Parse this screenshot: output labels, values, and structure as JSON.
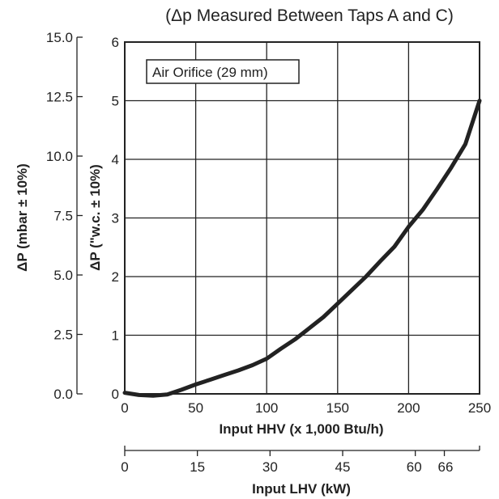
{
  "chart_data": {
    "type": "line",
    "title": "(Δp Measured Between Taps A and C)",
    "annotation": "Air Orifice (29 mm)",
    "xlabel": "Input HHV (x 1,000 Btu/h)",
    "xlabel_secondary": "Input LHV (kW)",
    "ylabel": "ΔP (\"w.c. ± 10%)",
    "ylabel_secondary": "ΔP (mbar ± 10%)",
    "xlim": [
      0,
      250
    ],
    "ylim": [
      0,
      6
    ],
    "x_ticks": [
      "0",
      "50",
      "100",
      "150",
      "200",
      "250"
    ],
    "y_ticks": [
      "0",
      "1",
      "2",
      "3",
      "4",
      "5",
      "6"
    ],
    "y2_ticks": [
      "0.0",
      "2.5",
      "5.0",
      "7.5",
      "10.0",
      "12.5",
      "15.0"
    ],
    "lhv_ticks": [
      {
        "value": 0,
        "label": "0"
      },
      {
        "value": 15,
        "label": "15"
      },
      {
        "value": 30,
        "label": "30"
      },
      {
        "value": 45,
        "label": "45"
      },
      {
        "value": 60,
        "label": "60"
      },
      {
        "value": 66,
        "label": "66"
      }
    ],
    "grid": true,
    "series": [
      {
        "color": "#222222",
        "x": [
          0,
          10,
          20,
          30,
          40,
          50,
          60,
          70,
          80,
          90,
          100,
          110,
          120,
          130,
          140,
          150,
          160,
          170,
          180,
          190,
          200,
          210,
          220,
          230,
          240,
          250
        ],
        "y": [
          0.02,
          -0.02,
          -0.03,
          -0.01,
          0.07,
          0.16,
          0.24,
          0.32,
          0.4,
          0.49,
          0.6,
          0.77,
          0.93,
          1.12,
          1.31,
          1.54,
          1.77,
          2.0,
          2.26,
          2.51,
          2.85,
          3.14,
          3.49,
          3.86,
          4.26,
          5.0
        ]
      }
    ]
  }
}
